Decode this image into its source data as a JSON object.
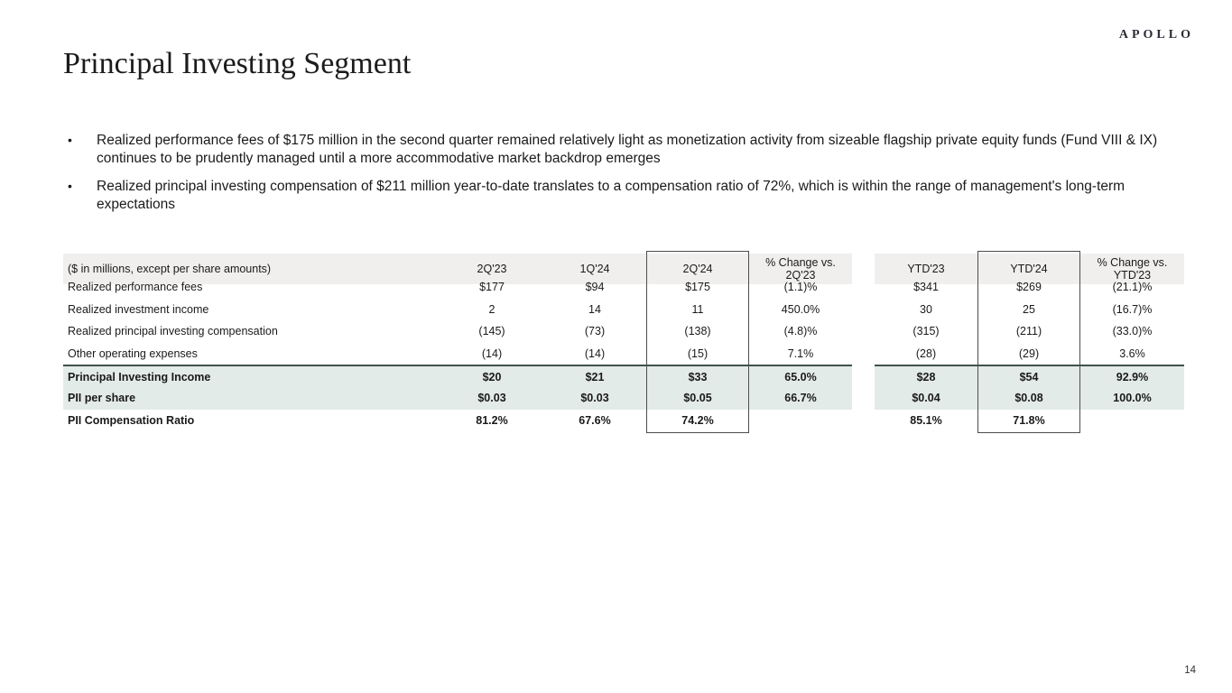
{
  "brand": {
    "logo_text": "APOLLO"
  },
  "slide": {
    "title": "Principal Investing Segment",
    "page_number": "14"
  },
  "bullets": [
    {
      "text": "Realized performance fees of $175 million in the second quarter remained relatively light as monetization activity from sizeable flagship private equity funds (Fund VIII & IX) continues to be prudently managed until a more accommodative market backdrop emerges"
    },
    {
      "text": "Realized principal investing compensation of $211 million year-to-date translates to a compensation ratio of 72%, which is within the range of management's long-term expectations"
    }
  ],
  "table": {
    "caption": "($ in millions, except per share amounts)",
    "columns": [
      "2Q'23",
      "1Q'24",
      "2Q'24",
      "% Change vs. 2Q'23",
      "YTD'23",
      "YTD'24",
      "% Change vs. YTD'23"
    ],
    "boxed_columns": [
      "2Q'24",
      "YTD'24"
    ],
    "rows": [
      {
        "label": "Realized performance fees",
        "values": [
          "$177",
          "$94",
          "$175",
          "(1.1)%",
          "$341",
          "$269",
          "(21.1)%"
        ],
        "bold": false,
        "highlight": false,
        "topline": false
      },
      {
        "label": "Realized investment income",
        "values": [
          "2",
          "14",
          "11",
          "450.0%",
          "30",
          "25",
          "(16.7)%"
        ],
        "bold": false,
        "highlight": false,
        "topline": false
      },
      {
        "label": "Realized principal investing compensation",
        "values": [
          "(145)",
          "(73)",
          "(138)",
          "(4.8)%",
          "(315)",
          "(211)",
          "(33.0)%"
        ],
        "bold": false,
        "highlight": false,
        "topline": false
      },
      {
        "label": "Other operating expenses",
        "values": [
          "(14)",
          "(14)",
          "(15)",
          "7.1%",
          "(28)",
          "(29)",
          "3.6%"
        ],
        "bold": false,
        "highlight": false,
        "topline": false
      },
      {
        "label": "Principal Investing Income",
        "values": [
          "$20",
          "$21",
          "$33",
          "65.0%",
          "$28",
          "$54",
          "92.9%"
        ],
        "bold": true,
        "highlight": true,
        "topline": true
      },
      {
        "label": "PII per share",
        "values": [
          "$0.03",
          "$0.03",
          "$0.05",
          "66.7%",
          "$0.04",
          "$0.08",
          "100.0%"
        ],
        "bold": true,
        "highlight": true,
        "topline": false
      },
      {
        "label": "PII Compensation Ratio",
        "values": [
          "81.2%",
          "67.6%",
          "74.2%",
          "",
          "85.1%",
          "71.8%",
          ""
        ],
        "bold": true,
        "highlight": false,
        "topline": false
      }
    ]
  },
  "colors": {
    "header_bg": "#f0efed",
    "highlight_row_bg": "#e3ebe8",
    "accent_line": "#40514a",
    "box_border": "#4d4d4d"
  }
}
